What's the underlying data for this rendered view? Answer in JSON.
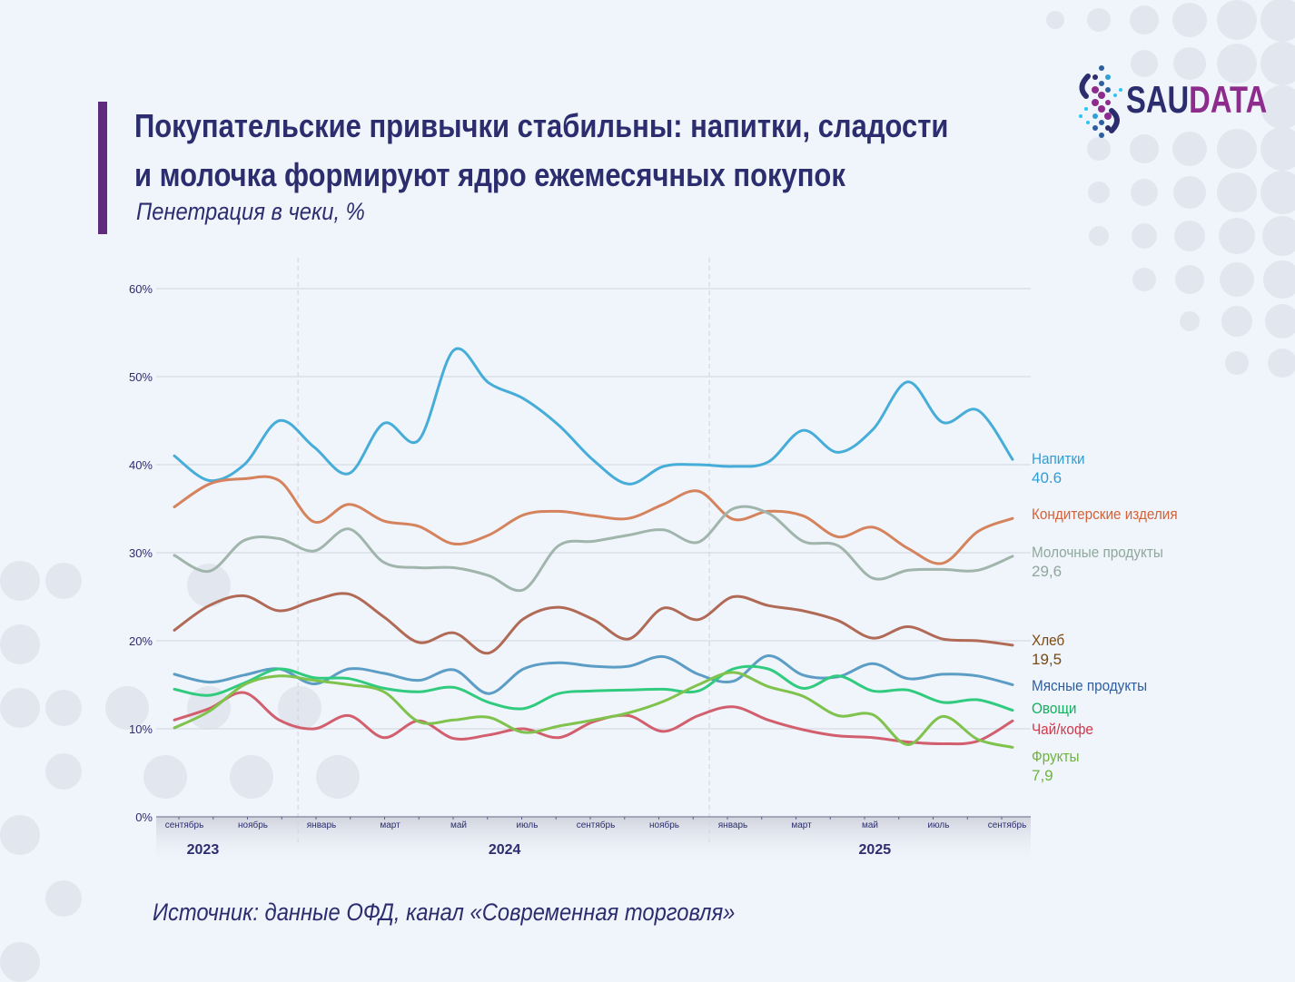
{
  "header": {
    "title_line1": "Покупательские привычки стабильны: напитки, сладости",
    "title_line2": "и молочка формируют ядро ежемесячных покупок",
    "subtitle": "Пенетрация в чеки, %"
  },
  "logo": {
    "part1": "SAU",
    "part2": "DATA"
  },
  "footer": {
    "source": "Источник: данные ОФД, канал «Современная торговля»"
  },
  "chart_data": {
    "type": "line",
    "title": "Покупательские привычки стабильны: напитки, сладости и молочка формируют ядро ежемесячных покупок",
    "ylabel": "Пенетрация в чеки, %",
    "ylim": [
      0,
      60
    ],
    "yticks": [
      "0%",
      "10%",
      "20%",
      "30%",
      "40%",
      "50%",
      "60%"
    ],
    "ytick_values": [
      0,
      10,
      20,
      30,
      40,
      50,
      60
    ],
    "x": [
      "2023-09",
      "2023-10",
      "2023-11",
      "2023-12",
      "2024-01",
      "2024-02",
      "2024-03",
      "2024-04",
      "2024-05",
      "2024-06",
      "2024-07",
      "2024-08",
      "2024-09",
      "2024-10",
      "2024-11",
      "2024-12",
      "2025-01",
      "2025-02",
      "2025-03",
      "2025-04",
      "2025-05",
      "2025-06",
      "2025-07",
      "2025-08",
      "2025-09"
    ],
    "xtick_labels": [
      {
        "index": 0,
        "label": "сентябрь"
      },
      {
        "index": 2,
        "label": "ноябрь"
      },
      {
        "index": 4,
        "label": "январь"
      },
      {
        "index": 6,
        "label": "март"
      },
      {
        "index": 8,
        "label": "май"
      },
      {
        "index": 10,
        "label": "июль"
      },
      {
        "index": 12,
        "label": "сентябрь"
      },
      {
        "index": 14,
        "label": "ноябрь"
      },
      {
        "index": 16,
        "label": "январь"
      },
      {
        "index": 18,
        "label": "март"
      },
      {
        "index": 20,
        "label": "май"
      },
      {
        "index": 22,
        "label": "июль"
      },
      {
        "index": 24,
        "label": "сентябрь"
      }
    ],
    "years": [
      {
        "label": "2023",
        "center_index": 0.7
      },
      {
        "label": "2024",
        "center_index": 9.5
      },
      {
        "label": "2025",
        "center_index": 20.3
      }
    ],
    "year_separators_index": [
      3.5,
      15.5
    ],
    "grid": true,
    "legend": "right-end labels",
    "series": [
      {
        "name": "Напитки",
        "end_label": "40.6",
        "color": "#46ADD8",
        "label_color": "#2E9FD6",
        "values": [
          41.0,
          38.2,
          40.0,
          45.0,
          42.0,
          39.0,
          44.7,
          42.8,
          53.0,
          49.3,
          47.5,
          44.5,
          40.5,
          37.8,
          39.8,
          40.0,
          39.8,
          40.3,
          43.9,
          41.4,
          44.0,
          49.4,
          44.8,
          46.2,
          40.6
        ]
      },
      {
        "name": "Кондитерские изделия",
        "end_label": "",
        "color": "#D5835D",
        "label_color": "#D0643A",
        "values": [
          35.2,
          37.8,
          38.4,
          38.2,
          33.5,
          35.5,
          33.6,
          33.0,
          31.0,
          32.0,
          34.3,
          34.7,
          34.2,
          33.9,
          35.5,
          37.0,
          33.8,
          34.7,
          34.2,
          31.8,
          32.9,
          30.5,
          28.8,
          32.4,
          33.9
        ]
      },
      {
        "name": "Молочные продукты",
        "end_label": "29,6",
        "color": "#A0B5AB",
        "label_color": "#8FA89C",
        "values": [
          29.7,
          27.9,
          31.4,
          31.6,
          30.2,
          32.7,
          28.9,
          28.3,
          28.3,
          27.4,
          25.8,
          30.8,
          31.3,
          32.0,
          32.6,
          31.2,
          35.0,
          34.5,
          31.3,
          30.8,
          27.1,
          28.0,
          28.1,
          28.0,
          29.6
        ]
      },
      {
        "name": "Хлеб",
        "end_label": "19,5",
        "color": "#B06A55",
        "label_color": "#7A4A12",
        "values": [
          21.2,
          24.0,
          25.1,
          23.4,
          24.6,
          25.3,
          22.7,
          19.8,
          20.9,
          18.6,
          22.5,
          23.8,
          22.4,
          20.2,
          23.7,
          22.4,
          25.0,
          24.0,
          23.4,
          22.3,
          20.3,
          21.6,
          20.2,
          20.0,
          19.5
        ]
      },
      {
        "name": "Мясные продукты",
        "end_label": "",
        "color": "#5B9DC4",
        "label_color": "#2F5E9E",
        "values": [
          16.2,
          15.3,
          16.1,
          16.8,
          15.1,
          16.8,
          16.3,
          15.5,
          16.7,
          14.0,
          16.8,
          17.5,
          17.1,
          17.1,
          18.2,
          16.2,
          15.4,
          18.3,
          16.1,
          15.9,
          17.4,
          15.7,
          16.2,
          16.0,
          15.0
        ]
      },
      {
        "name": "Овощи",
        "end_label": "",
        "color": "#31CB7F",
        "label_color": "#13B05E",
        "values": [
          14.5,
          13.8,
          15.2,
          16.8,
          15.8,
          15.7,
          14.6,
          14.2,
          14.7,
          13.0,
          12.3,
          14.0,
          14.3,
          14.4,
          14.5,
          14.3,
          16.8,
          16.8,
          14.6,
          16.0,
          14.3,
          14.4,
          13.0,
          13.3,
          12.1
        ]
      },
      {
        "name": "Чай/кофе",
        "end_label": "",
        "color": "#D25F6D",
        "label_color": "#D03A4A",
        "values": [
          11.0,
          12.3,
          14.1,
          11.0,
          10.0,
          11.5,
          9.0,
          10.9,
          8.9,
          9.3,
          10.0,
          9.0,
          10.8,
          11.5,
          9.7,
          11.5,
          12.5,
          11.0,
          9.9,
          9.2,
          9.0,
          8.5,
          8.3,
          8.6,
          10.9
        ]
      },
      {
        "name": "Фрукты",
        "end_label": "7,9",
        "color": "#7FC24C",
        "label_color": "#6DB53A",
        "values": [
          10.1,
          12.0,
          15.0,
          16.0,
          15.5,
          15.0,
          14.2,
          10.8,
          11.0,
          11.3,
          9.6,
          10.3,
          11.0,
          11.8,
          13.1,
          15.0,
          16.4,
          14.8,
          13.7,
          11.5,
          11.6,
          8.2,
          11.4,
          8.8,
          7.9
        ]
      }
    ]
  }
}
